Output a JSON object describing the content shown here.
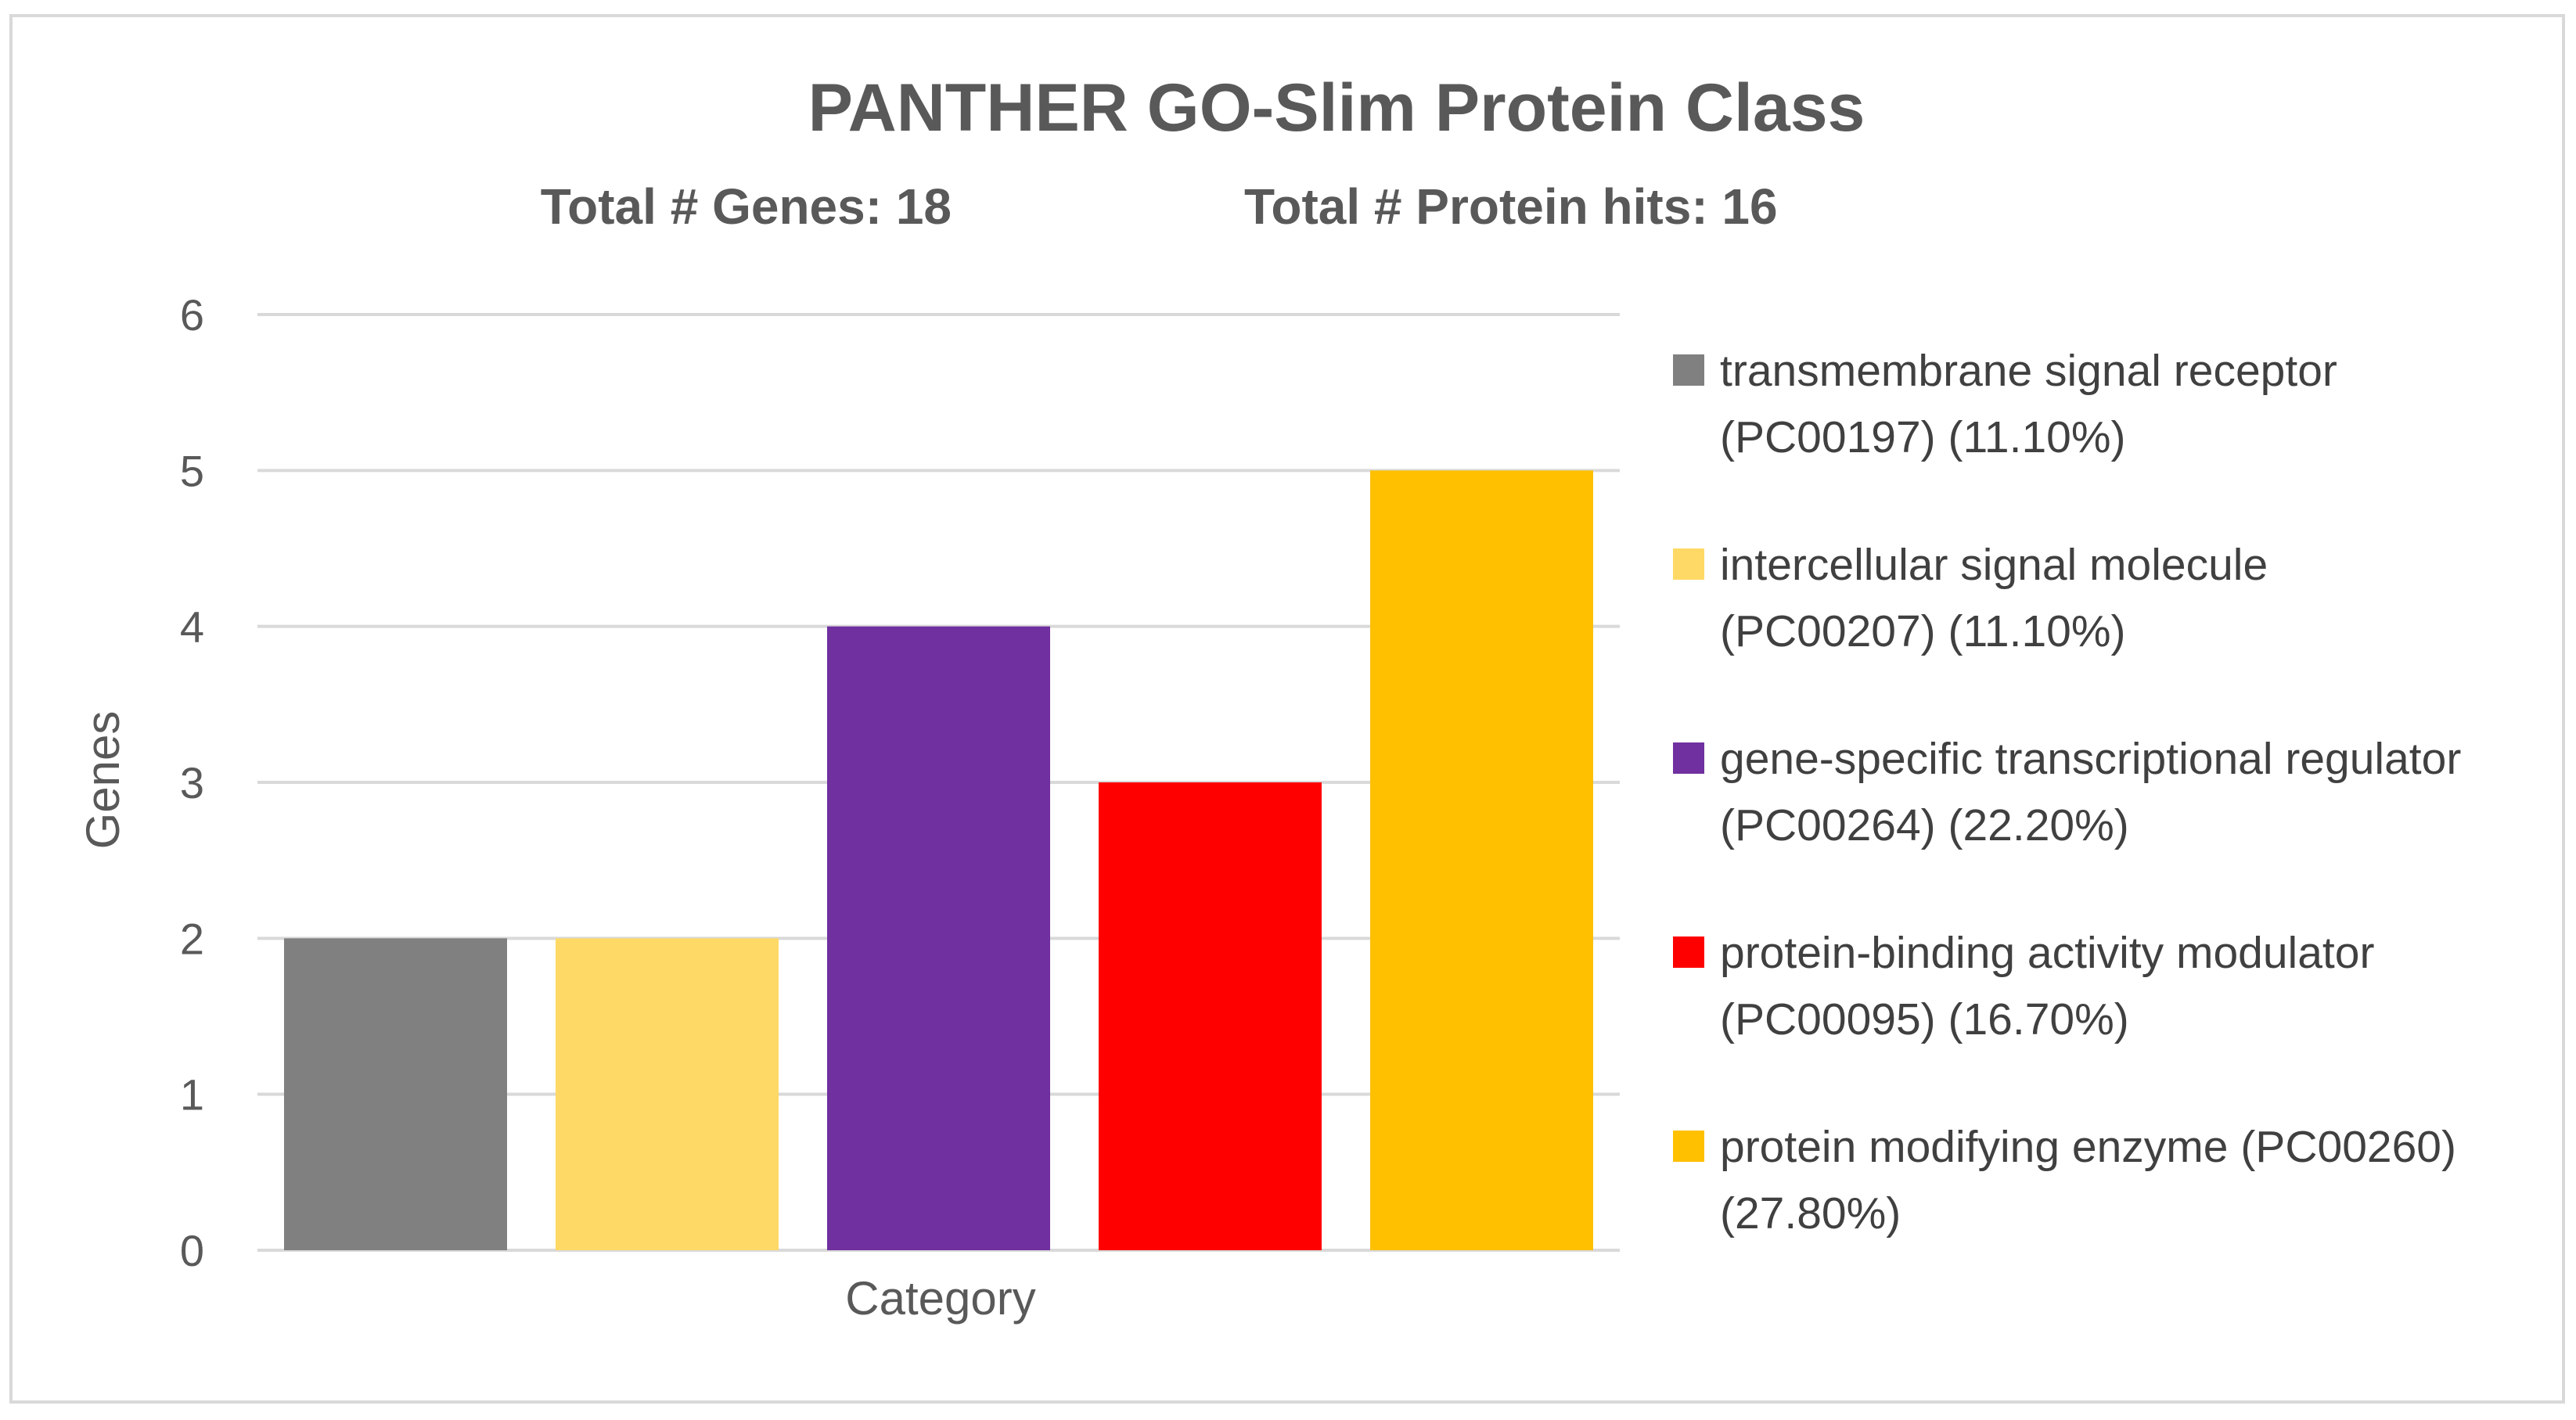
{
  "chart_data": {
    "type": "bar",
    "title": "PANTHER GO-Slim Protein Class",
    "subtitle_genes": "Total # Genes: 18",
    "subtitle_hits": "Total # Protein hits: 16",
    "xlabel": "Category",
    "ylabel": "Genes",
    "ylim": [
      0,
      6
    ],
    "yticks": [
      "0",
      "1",
      "2",
      "3",
      "4",
      "5",
      "6"
    ],
    "grid": true,
    "legend_position": "right",
    "categories": [
      "Category"
    ],
    "series": [
      {
        "name": "transmembrane signal receptor (PC00197) (11.10%)",
        "legend_line1": "transmembrane signal receptor",
        "legend_line2": "(PC00197) (11.10%)",
        "values": [
          2
        ],
        "color": "#808080"
      },
      {
        "name": "intercellular signal molecule (PC00207) (11.10%)",
        "legend_line1": "intercellular signal molecule",
        "legend_line2": "(PC00207) (11.10%)",
        "values": [
          2
        ],
        "color": "#FFD966"
      },
      {
        "name": "gene-specific transcriptional regulator (PC00264) (22.20%)",
        "legend_line1": "gene-specific transcriptional regulator",
        "legend_line2": "(PC00264) (22.20%)",
        "values": [
          4
        ],
        "color": "#7030A0"
      },
      {
        "name": "protein-binding activity modulator (PC00095) (16.70%)",
        "legend_line1": "protein-binding activity modulator",
        "legend_line2": "(PC00095) (16.70%)",
        "values": [
          3
        ],
        "color": "#FF0000"
      },
      {
        "name": "protein modifying enzyme (PC00260) (27.80%)",
        "legend_line1": "protein modifying enzyme (PC00260)",
        "legend_line2": "(27.80%)",
        "values": [
          5
        ],
        "color": "#FFC000"
      }
    ]
  }
}
